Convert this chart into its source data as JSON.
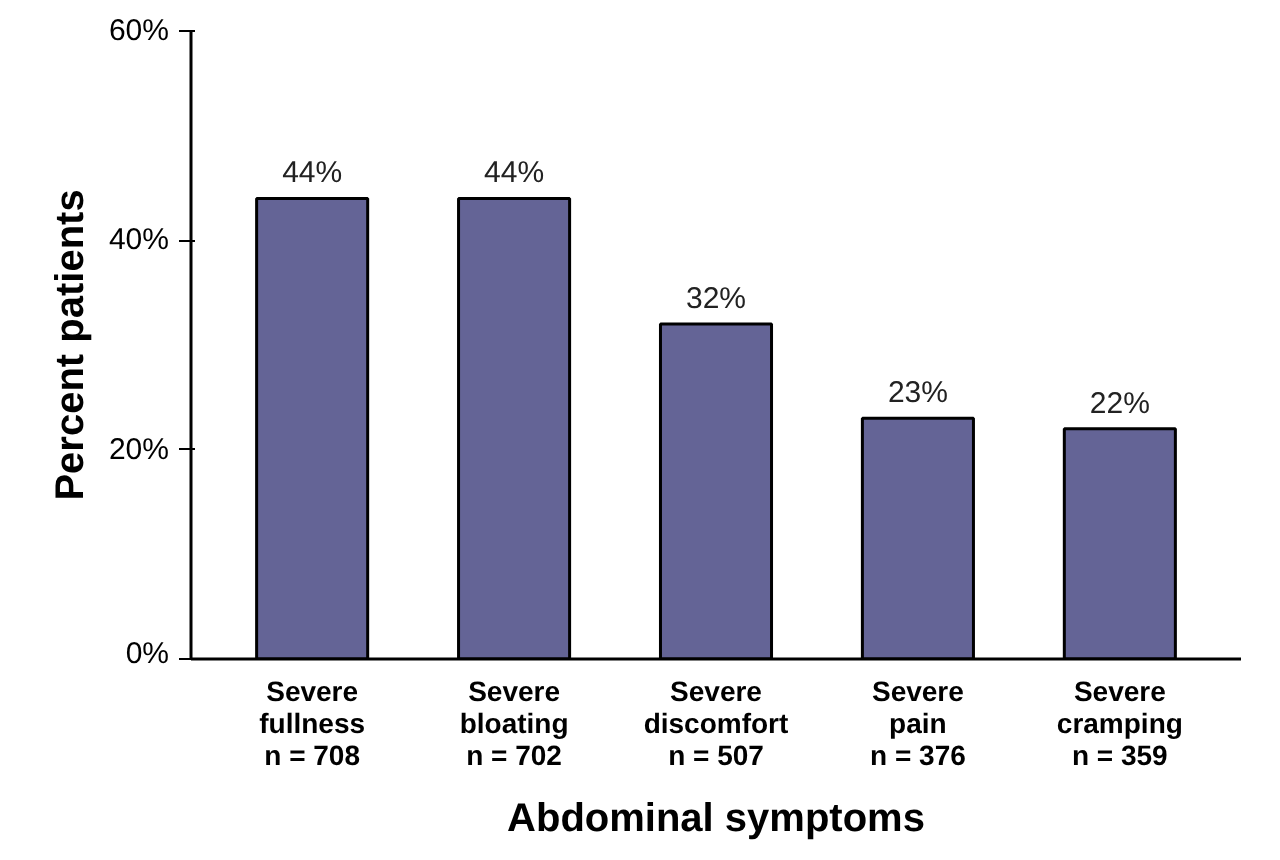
{
  "chart_data": {
    "type": "bar",
    "xlabel": "Abdominal symptoms",
    "ylabel": "Percent patients",
    "categories": [
      "Severe\nfullness\nn = 708",
      "Severe\nbloating\nn = 702",
      "Severe\ndiscomfort\nn = 507",
      "Severe\npain\nn = 376",
      "Severe\ncramping\nn = 359"
    ],
    "values": [
      44,
      44,
      32,
      23,
      22
    ],
    "value_labels": [
      "44%",
      "44%",
      "32%",
      "23%",
      "22%"
    ],
    "color": "#646496",
    "ylim": [
      0,
      60
    ],
    "yticks": [
      {
        "value": 0,
        "label": "0%"
      },
      {
        "value": 20,
        "label": "20%"
      },
      {
        "value": 40,
        "label": "40%"
      },
      {
        "value": 60,
        "label": "60%"
      }
    ],
    "grid": false
  }
}
